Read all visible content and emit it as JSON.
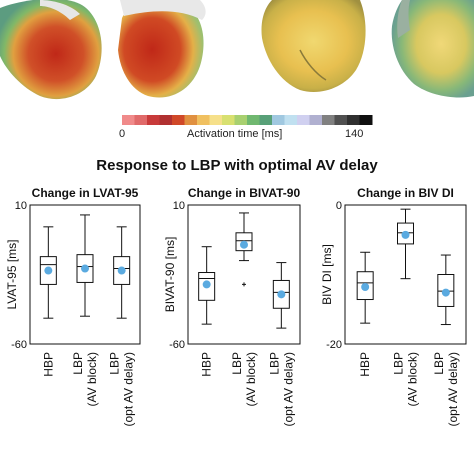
{
  "figure": {
    "colorbar": {
      "min_label": "0",
      "max_label": "140",
      "title": "Activation time [ms]",
      "colors": [
        "#f08a8a",
        "#e06a6a",
        "#c83a3a",
        "#b03030",
        "#d04828",
        "#e09040",
        "#f0c060",
        "#f6e08a",
        "#d8e070",
        "#a8d070",
        "#70b870",
        "#58a078",
        "#a0c8e0",
        "#c0e0f0",
        "#d0d0f0",
        "#b0b0d0",
        "#808080",
        "#505050",
        "#303030",
        "#101010"
      ]
    },
    "title": "Response to LBP with optimal AV delay"
  },
  "chart_data": [
    {
      "type": "box",
      "title": "Change in LVAT-95",
      "ylabel": "LVAT-95 [ms]",
      "ylim": [
        -60,
        10
      ],
      "yticks": [
        "10",
        "-60"
      ],
      "categories": [
        "HBP",
        "LBP\n(AV block)",
        "LBP\n(opt AV delay)"
      ],
      "boxes": [
        {
          "whislo": -47,
          "q1": -30,
          "med": -20,
          "q3": -16,
          "whishi": -1,
          "mean": -23
        },
        {
          "whislo": -46,
          "q1": -29,
          "med": -21,
          "q3": -15,
          "whishi": 5,
          "mean": -22
        },
        {
          "whislo": -47,
          "q1": -30,
          "med": -22,
          "q3": -16,
          "whishi": -1,
          "mean": -23
        }
      ],
      "mean_color": "#5aaae0"
    },
    {
      "type": "box",
      "title": "Change in BIVAT-90",
      "ylabel": "BIVAT-90 [ms]",
      "ylim": [
        -60,
        10
      ],
      "yticks": [
        "10",
        "-60"
      ],
      "categories": [
        "HBP",
        "LBP\n(AV block)",
        "LBP\n(opt AV delay)"
      ],
      "boxes": [
        {
          "whislo": -50,
          "q1": -38,
          "med": -27,
          "q3": -24,
          "whishi": -11,
          "mean": -30
        },
        {
          "whislo": -18,
          "q1": -13,
          "med": -8,
          "q3": -4,
          "whishi": 6,
          "mean": -10,
          "fliers": [
            -30
          ]
        },
        {
          "whislo": -52,
          "q1": -42,
          "med": -34,
          "q3": -28,
          "whishi": -19,
          "mean": -35
        }
      ],
      "mean_color": "#5aaae0"
    },
    {
      "type": "box",
      "title": "Change in BIV DI",
      "ylabel": "BIV DI [ms]",
      "ylim": [
        -20,
        0
      ],
      "yticks": [
        "0",
        "-20"
      ],
      "categories": [
        "HBP",
        "LBP\n(AV block)",
        "LBP\n(opt AV delay)"
      ],
      "boxes": [
        {
          "whislo": -17,
          "q1": -13.6,
          "med": -11.2,
          "q3": -9.6,
          "whishi": -6.8,
          "mean": -11.8
        },
        {
          "whislo": -10.6,
          "q1": -5.6,
          "med": -4,
          "q3": -2.6,
          "whishi": -0.6,
          "mean": -4.3
        },
        {
          "whislo": -17.2,
          "q1": -14.6,
          "med": -12.4,
          "q3": -10,
          "whishi": -7.2,
          "mean": -12.6
        }
      ],
      "mean_color": "#5aaae0"
    }
  ]
}
